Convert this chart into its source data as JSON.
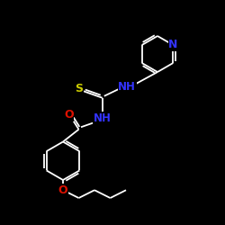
{
  "background_color": "#000000",
  "bond_color": "#ffffff",
  "S_color": "#cccc00",
  "O_color": "#dd1100",
  "N_color": "#3333ff",
  "atom_bg": "#000000",
  "lw": 1.3,
  "fig_size": [
    2.5,
    2.5
  ],
  "dpi": 100,
  "xlim": [
    0,
    10
  ],
  "ylim": [
    0,
    10
  ]
}
